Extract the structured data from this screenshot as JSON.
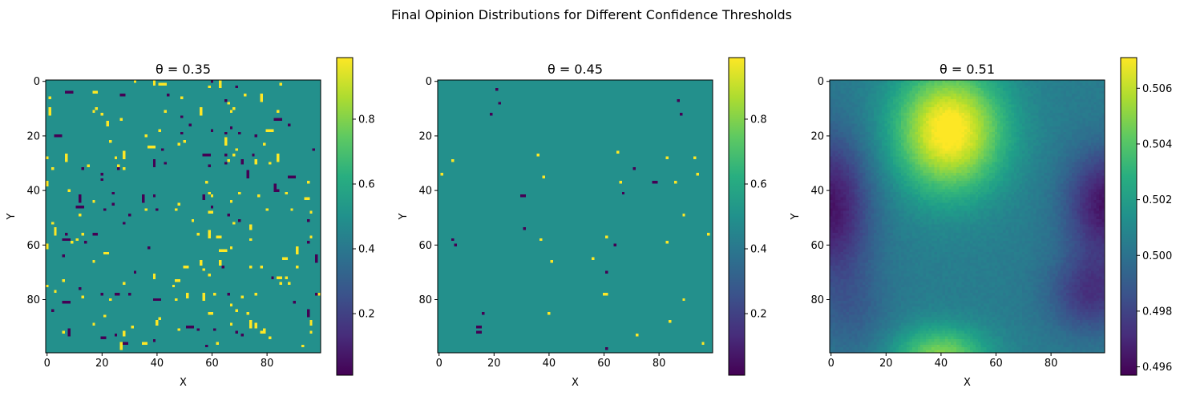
{
  "figure": {
    "suptitle": "Final Opinion Distributions for Different Confidence Thresholds"
  },
  "chart_data": [
    {
      "type": "heatmap",
      "title": "θ = 0.35",
      "xlabel": "X",
      "ylabel": "Y",
      "grid_size": [
        100,
        100
      ],
      "xlim": [
        0,
        99
      ],
      "ylim": [
        99,
        0
      ],
      "x_ticks": [
        "0",
        "20",
        "40",
        "60",
        "80"
      ],
      "y_ticks": [
        "0",
        "20",
        "40",
        "60",
        "80"
      ],
      "colormap": "viridis",
      "colorbar": {
        "range": [
          0.01,
          0.99
        ],
        "ticks": [
          "0.2",
          "0.4",
          "0.6",
          "0.8"
        ]
      },
      "background_value": 0.5,
      "pattern": "uniform ~0.5 field with many scattered single-cell and short-streak outliers near 0.99 (yellow) and 0.01 (purple)"
    },
    {
      "type": "heatmap",
      "title": "θ = 0.45",
      "xlabel": "X",
      "ylabel": "Y",
      "grid_size": [
        100,
        100
      ],
      "xlim": [
        0,
        99
      ],
      "ylim": [
        99,
        0
      ],
      "x_ticks": [
        "0",
        "20",
        "40",
        "60",
        "80"
      ],
      "y_ticks": [
        "0",
        "20",
        "40",
        "60",
        "80"
      ],
      "colormap": "viridis",
      "colorbar": {
        "range": [
          0.01,
          0.99
        ],
        "ticks": [
          "0.2",
          "0.4",
          "0.6",
          "0.8"
        ]
      },
      "background_value": 0.5,
      "outliers_high": [
        [
          5,
          29
        ],
        [
          1,
          34
        ],
        [
          36,
          27
        ],
        [
          38,
          35
        ],
        [
          65,
          26
        ],
        [
          66,
          37
        ],
        [
          83,
          28
        ],
        [
          93,
          28
        ],
        [
          94,
          34
        ],
        [
          86,
          37
        ],
        [
          98,
          56
        ],
        [
          37,
          58
        ],
        [
          41,
          66
        ],
        [
          61,
          57
        ],
        [
          56,
          65
        ],
        [
          60,
          78
        ],
        [
          61,
          78
        ],
        [
          83,
          59
        ],
        [
          89,
          49
        ],
        [
          89,
          80
        ],
        [
          84,
          88
        ],
        [
          72,
          93
        ],
        [
          40,
          85
        ],
        [
          96,
          96
        ]
      ],
      "outliers_low": [
        [
          21,
          3
        ],
        [
          22,
          8
        ],
        [
          19,
          12
        ],
        [
          87,
          7
        ],
        [
          88,
          12
        ],
        [
          30,
          42
        ],
        [
          31,
          42
        ],
        [
          71,
          32
        ],
        [
          67,
          41
        ],
        [
          78,
          37
        ],
        [
          79,
          37
        ],
        [
          31,
          54
        ],
        [
          5,
          58
        ],
        [
          6,
          60
        ],
        [
          64,
          60
        ],
        [
          16,
          85
        ],
        [
          14,
          90
        ],
        [
          15,
          90
        ],
        [
          14,
          92
        ],
        [
          15,
          92
        ],
        [
          61,
          70
        ],
        [
          61,
          98
        ]
      ]
    },
    {
      "type": "heatmap",
      "title": "θ = 0.51",
      "xlabel": "X",
      "ylabel": "Y",
      "grid_size": [
        100,
        100
      ],
      "xlim": [
        0,
        99
      ],
      "ylim": [
        99,
        0
      ],
      "x_ticks": [
        "0",
        "20",
        "40",
        "60",
        "80"
      ],
      "y_ticks": [
        "0",
        "20",
        "40",
        "60",
        "80"
      ],
      "colormap": "viridis",
      "colorbar": {
        "range": [
          0.4957,
          0.5071
        ],
        "ticks": [
          "0.496",
          "0.498",
          "0.500",
          "0.502",
          "0.504",
          "0.506"
        ]
      },
      "pattern": "smooth field: maximum ~0.507 near (x=43, y=18), secondary high ~0.505 near (x=40, y=99), minima ~0.496 near (x=0, y=45), (x=99, y=45) and (x=95, y=75)"
    }
  ]
}
